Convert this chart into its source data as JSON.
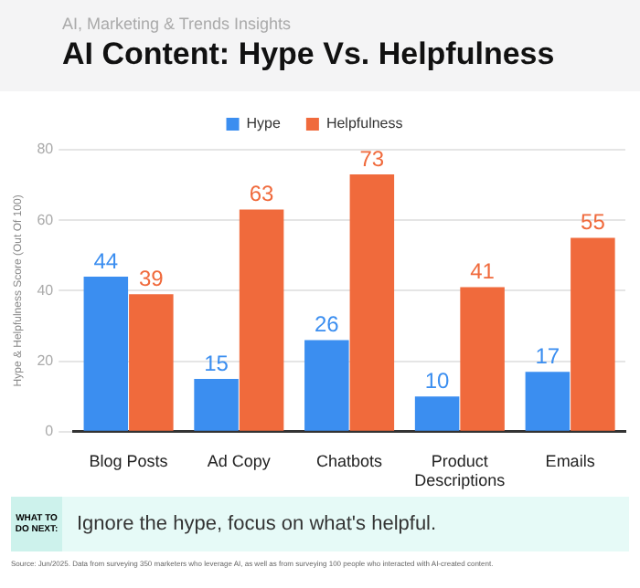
{
  "chart_data": {
    "type": "bar",
    "title": "AI Content: Hype Vs. Helpfulness",
    "subtitle": "AI, Marketing & Trends Insights",
    "ylabel": "Hype & Helpfulness Score (Out Of 100)",
    "categories": [
      "Blog Posts",
      "Ad Copy",
      "Chatbots",
      "Product Descriptions",
      "Emails"
    ],
    "series": [
      {
        "name": "Hype",
        "color": "#3b8ef0",
        "values": [
          44,
          15,
          26,
          10,
          17
        ]
      },
      {
        "name": "Helpfulness",
        "color": "#f06a3c",
        "values": [
          39,
          63,
          73,
          41,
          55
        ]
      }
    ],
    "ylim": [
      0,
      80
    ],
    "yticks": [
      0,
      20,
      40,
      60,
      80
    ],
    "grid": "y",
    "legend": "top",
    "data_labels": true,
    "annotations": [
      "WHAT TO DO NEXT:",
      "Ignore the hype, focus on what's helpful.",
      "Source: Jun/2025. Data from surveying 350 marketers who leverage AI, as well as from surveying 100 people who interacted with AI-created content."
    ]
  }
}
